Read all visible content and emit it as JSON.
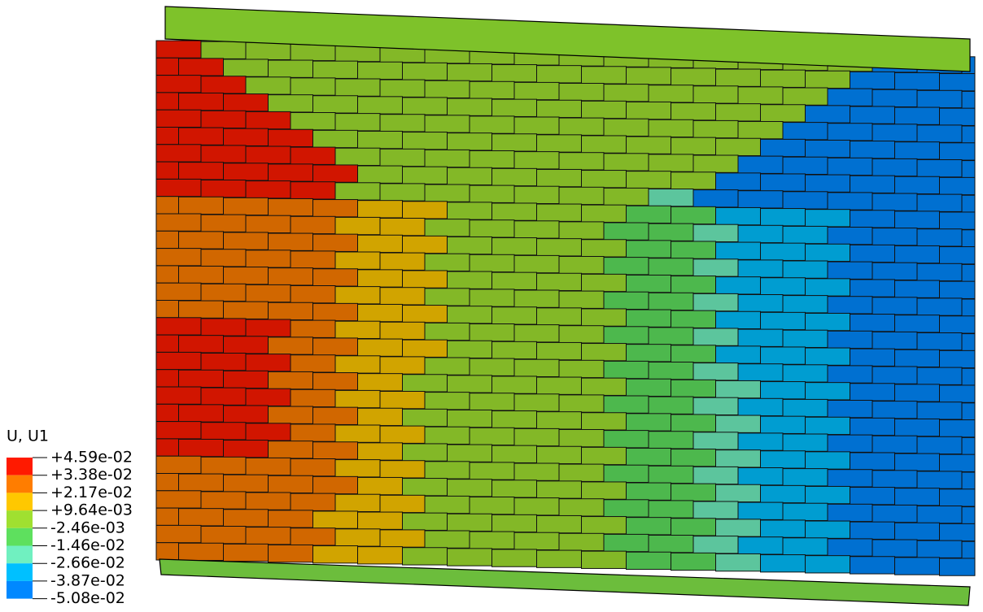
{
  "legend": {
    "title": "U, U1",
    "labels": [
      "+4.59e-02",
      "+3.38e-02",
      "+2.17e-02",
      "+9.64e-03",
      "-2.46e-03",
      "-1.46e-02",
      "-2.66e-02",
      "-3.87e-02",
      "-5.08e-02"
    ],
    "colors": [
      "#ff1a00",
      "#ff7d00",
      "#ffc800",
      "#a0e030",
      "#5ee05e",
      "#70f0c0",
      "#00c0ff",
      "#0088ff"
    ]
  }
}
